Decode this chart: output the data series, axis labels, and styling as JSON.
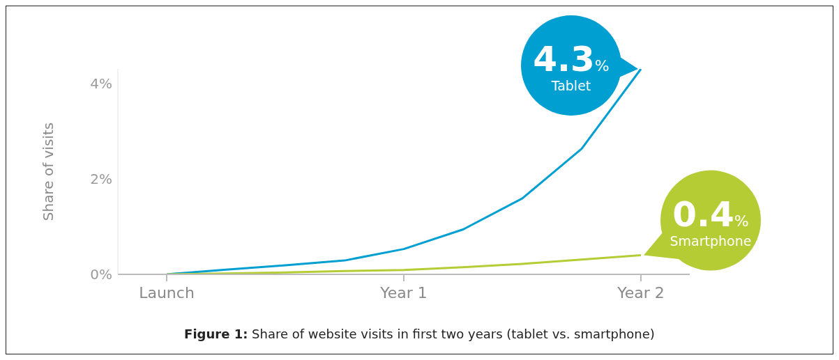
{
  "chart_data": {
    "type": "line",
    "title": "Figure 1: Share of website visits in first two years (tablet vs. smartphone)",
    "ylabel": "Share of visits",
    "categories": [
      "Launch",
      null,
      null,
      null,
      "Year 1",
      null,
      null,
      null,
      "Year 2"
    ],
    "ylim": [
      0,
      4.3
    ],
    "yticks": [
      {
        "value": 0,
        "label": "0%"
      },
      {
        "value": 2,
        "label": "2%"
      },
      {
        "value": 4,
        "label": "4%"
      }
    ],
    "marker": "none",
    "line_style": "solid",
    "series": [
      {
        "name": "Tablet",
        "color": "#009fd1",
        "values": [
          0,
          0.1,
          0.19,
          0.29,
          0.53,
          0.94,
          1.59,
          2.63,
          4.3
        ],
        "value_labels": [
          null,
          null,
          null,
          null,
          null,
          null,
          null,
          null,
          "4.3%"
        ]
      },
      {
        "name": "Smartphone",
        "color": "#b5cc34",
        "values": [
          0,
          0.02,
          0.04,
          0.07,
          0.09,
          0.15,
          0.22,
          0.31,
          0.4
        ],
        "value_labels": [
          null,
          null,
          null,
          null,
          null,
          null,
          null,
          null,
          "0.4%"
        ]
      }
    ]
  }
}
